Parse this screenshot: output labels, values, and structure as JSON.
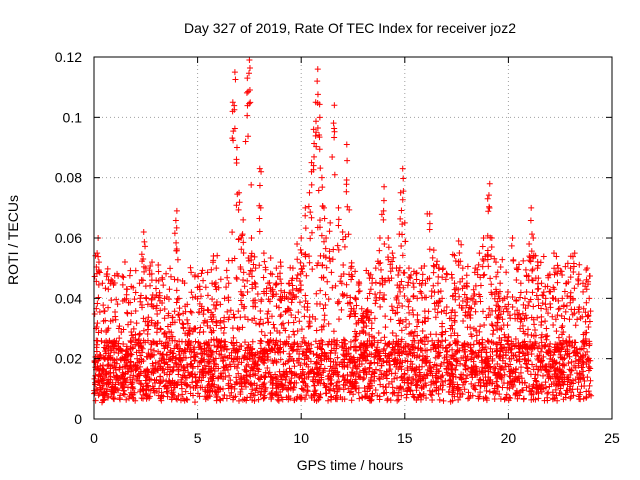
{
  "chart_data": {
    "type": "scatter",
    "title": "Day 327 of 2019, Rate Of TEC Index for receiver joz2",
    "xlabel": "GPS time / hours",
    "ylabel": "ROTI / TECUs",
    "xlim": [
      0,
      25
    ],
    "ylim": [
      0,
      0.12
    ],
    "x_ticks": [
      "0",
      "5",
      "10",
      "15",
      "20",
      "25"
    ],
    "y_ticks": [
      "0",
      "0.02",
      "0.04",
      "0.06",
      "0.08",
      "0.1",
      "0.12"
    ],
    "grid": true,
    "marker": "plus",
    "color": "#ff0000",
    "series": [
      {
        "name": "ROTI",
        "note": "dense per-epoch samples from 0 to 24 h; representative points listed",
        "x": [
          0.05,
          0.1,
          0.15,
          0.2,
          0.25,
          0.3,
          0.35,
          0.4,
          0.5,
          0.6,
          0.7,
          0.8,
          0.9,
          1.0,
          1.2,
          1.4,
          1.6,
          1.8,
          2.0,
          2.2,
          2.4,
          2.5,
          2.6,
          2.8,
          3.0,
          3.2,
          3.4,
          3.6,
          3.8,
          4.0,
          4.1,
          4.3,
          4.5,
          4.7,
          4.9,
          5.1,
          5.3,
          5.5,
          5.7,
          5.9,
          6.1,
          6.3,
          6.5,
          6.7,
          6.8,
          6.9,
          7.0,
          7.1,
          7.2,
          7.4,
          7.5,
          7.6,
          7.8,
          8.0,
          8.2,
          8.4,
          8.6,
          8.8,
          9.0,
          9.2,
          9.4,
          9.6,
          9.8,
          10.0,
          10.2,
          10.4,
          10.5,
          10.6,
          10.7,
          10.8,
          10.9,
          11.0,
          11.1,
          11.2,
          11.4,
          11.6,
          11.8,
          12.0,
          12.2,
          12.4,
          12.6,
          12.8,
          13.0,
          13.2,
          13.4,
          13.6,
          13.8,
          14.0,
          14.2,
          14.4,
          14.6,
          14.8,
          14.9,
          15.0,
          15.2,
          15.4,
          15.6,
          15.8,
          16.0,
          16.2,
          16.4,
          16.6,
          16.8,
          17.0,
          17.2,
          17.4,
          17.6,
          17.8,
          18.0,
          18.2,
          18.4,
          18.6,
          18.8,
          19.0,
          19.1,
          19.2,
          19.4,
          19.6,
          19.8,
          20.0,
          20.2,
          20.4,
          20.6,
          20.8,
          21.0,
          21.1,
          21.2,
          21.4,
          21.6,
          21.8,
          22.0,
          22.2,
          22.4,
          22.6,
          22.8,
          23.0,
          23.2,
          23.4,
          23.6,
          23.8,
          23.9
        ],
        "y": [
          0.012,
          0.03,
          0.055,
          0.06,
          0.02,
          0.014,
          0.009,
          0.011,
          0.02,
          0.015,
          0.018,
          0.013,
          0.012,
          0.025,
          0.03,
          0.02,
          0.043,
          0.035,
          0.028,
          0.045,
          0.062,
          0.05,
          0.038,
          0.052,
          0.046,
          0.03,
          0.04,
          0.035,
          0.032,
          0.069,
          0.04,
          0.035,
          0.038,
          0.042,
          0.03,
          0.044,
          0.036,
          0.041,
          0.045,
          0.05,
          0.038,
          0.04,
          0.045,
          0.105,
          0.115,
          0.09,
          0.075,
          0.06,
          0.066,
          0.113,
          0.119,
          0.06,
          0.05,
          0.083,
          0.055,
          0.045,
          0.048,
          0.05,
          0.052,
          0.04,
          0.045,
          0.05,
          0.058,
          0.06,
          0.07,
          0.075,
          0.085,
          0.096,
          0.105,
          0.116,
          0.1,
          0.08,
          0.07,
          0.06,
          0.065,
          0.104,
          0.07,
          0.062,
          0.091,
          0.05,
          0.04,
          0.045,
          0.035,
          0.04,
          0.03,
          0.05,
          0.06,
          0.077,
          0.06,
          0.055,
          0.05,
          0.075,
          0.083,
          0.065,
          0.05,
          0.045,
          0.04,
          0.05,
          0.045,
          0.068,
          0.056,
          0.045,
          0.04,
          0.035,
          0.03,
          0.045,
          0.059,
          0.05,
          0.045,
          0.04,
          0.05,
          0.055,
          0.06,
          0.073,
          0.078,
          0.06,
          0.052,
          0.045,
          0.04,
          0.038,
          0.06,
          0.05,
          0.045,
          0.04,
          0.058,
          0.07,
          0.06,
          0.05,
          0.045,
          0.04,
          0.048,
          0.055,
          0.05,
          0.04,
          0.045,
          0.05,
          0.055,
          0.048,
          0.045,
          0.05,
          0.04
        ]
      }
    ]
  }
}
